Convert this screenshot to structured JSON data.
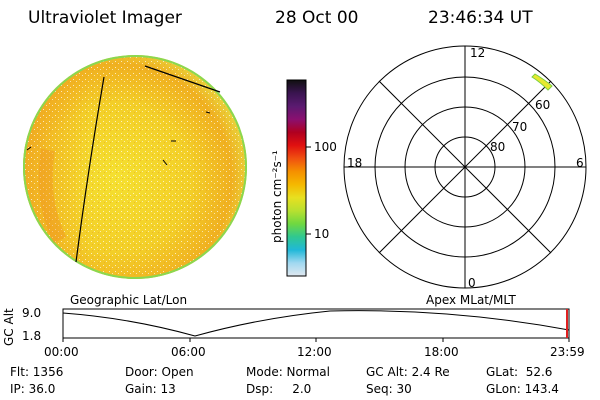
{
  "header": {
    "instrument": "Ultraviolet Imager",
    "date": "28 Oct 00",
    "time": "23:46:34 UT"
  },
  "colorbar": {
    "unit_label": "photon cm⁻²s⁻¹",
    "ticks": [
      "100",
      "10"
    ],
    "colors": [
      "#101010",
      "#3a1450",
      "#5a1a70",
      "#8a1070",
      "#b00020",
      "#e01010",
      "#f05010",
      "#f59000",
      "#f5b800",
      "#e8e020",
      "#b8e030",
      "#70d840",
      "#30c890",
      "#20b8d8",
      "#a0d8f0",
      "#e0e8f0"
    ]
  },
  "polar": {
    "mlt_labels": {
      "top": "12",
      "left": "18",
      "right": "6",
      "bottom": "0"
    },
    "lat_labels": [
      "60",
      "70",
      "80"
    ]
  },
  "timeline": {
    "left_label": "Geographic Lat/Lon",
    "right_label": "Apex MLat/MLT",
    "axis_name": "GC Alt",
    "y_ticks": [
      "9.0",
      "1.8"
    ],
    "x_ticks": [
      "00:00",
      "06:00",
      "12:00",
      "18:00",
      "23:59"
    ]
  },
  "info": {
    "flt": "Flt: 1356",
    "ip": "IP: 36.0",
    "door": "Door: Open",
    "gain": "Gain: 13",
    "mode": "Mode: Normal",
    "dsp": "Dsp:     2.0",
    "gcalt": "GC Alt: 2.4 Re",
    "seq": "Seq: 30",
    "glat": "GLat:  52.6",
    "glon": "GLon: 143.4"
  }
}
